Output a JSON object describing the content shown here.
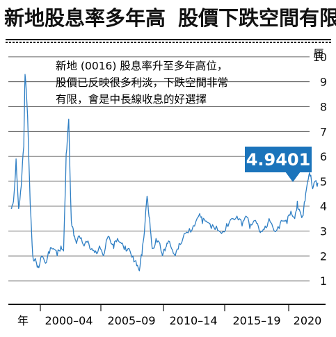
{
  "title_left": "新地股息率多年高",
  "title_right": "股價下跌空間有限",
  "annotation": [
    "新地 (0016) 股息率升至多年高位，",
    "股價已反映很多利淡，下跌空間非常",
    "有限，會是中長線收息的好選擇"
  ],
  "callout_value": "4.9401",
  "colors": {
    "line": "#2f7fc4",
    "callout": "#1b74bb",
    "grid": "#333333",
    "text": "#111111"
  },
  "chart_data": {
    "type": "line",
    "y_unit": "厘",
    "y_ticks": [
      1,
      2,
      3,
      4,
      5,
      6,
      7,
      8,
      9,
      10
    ],
    "ylim": [
      0.5,
      10.5
    ],
    "x_start_label": "年",
    "x_categories": [
      "2000–04",
      "2005–09",
      "2010–14",
      "2015–19",
      "2020"
    ],
    "xlim": [
      1996.8,
      2021.5
    ],
    "last_value": 4.9401,
    "series": [
      {
        "x": [
          1997.0,
          1997.2,
          1997.4,
          1997.6,
          1997.8,
          1998.0,
          1998.1,
          1998.3,
          1998.5,
          1998.7,
          1998.9,
          1999.1,
          1999.4,
          1999.7,
          2000.0,
          2000.3,
          2000.6,
          2000.9,
          2001.1,
          2001.3,
          2001.5,
          2001.7,
          2001.9,
          2002.1,
          2002.4,
          2002.7,
          2003.0,
          2003.3,
          2003.6,
          2003.9,
          2004.2,
          2004.5,
          2004.8,
          2005.0,
          2005.3,
          2005.6,
          2005.9,
          2006.2,
          2006.5,
          2006.8,
          2007.0,
          2007.2,
          2007.4,
          2007.6,
          2007.8,
          2008.0,
          2008.3,
          2008.6,
          2008.8,
          2009.0,
          2009.2,
          2009.5,
          2009.8,
          2010.1,
          2010.5,
          2010.9,
          2011.3,
          2011.7,
          2011.9,
          2012.2,
          2012.6,
          2013.0,
          2013.4,
          2013.8,
          2014.2,
          2014.6,
          2015.0,
          2015.3,
          2015.6,
          2015.9,
          2016.2,
          2016.5,
          2016.8,
          2017.1,
          2017.5,
          2017.9,
          2018.2,
          2018.5,
          2018.8,
          2019.1,
          2019.3,
          2019.5,
          2019.7,
          2019.9,
          2020.1,
          2020.3,
          2020.5,
          2020.7,
          2020.9
        ],
        "y": [
          3.9,
          4.2,
          5.9,
          3.9,
          4.8,
          6.4,
          9.3,
          7.6,
          4.1,
          2.0,
          1.9,
          1.6,
          2.0,
          1.7,
          2.1,
          2.3,
          2.0,
          2.4,
          2.2,
          6.1,
          7.5,
          3.4,
          2.8,
          2.5,
          2.7,
          2.4,
          2.6,
          2.3,
          2.2,
          2.4,
          2.0,
          2.7,
          2.5,
          2.3,
          2.7,
          2.5,
          2.4,
          2.3,
          2.0,
          1.6,
          1.4,
          2.0,
          3.0,
          4.4,
          3.5,
          2.3,
          2.7,
          2.5,
          2.0,
          2.2,
          2.5,
          2.3,
          2.0,
          2.5,
          2.9,
          3.1,
          3.2,
          3.7,
          3.3,
          3.4,
          3.1,
          3.2,
          2.9,
          3.3,
          3.5,
          3.6,
          3.2,
          3.6,
          3.1,
          3.4,
          3.3,
          3.0,
          3.2,
          3.5,
          3.0,
          3.1,
          3.4,
          3.3,
          3.8,
          3.5,
          4.2,
          3.8,
          3.6,
          4.2,
          5.0,
          5.2,
          4.7,
          5.0,
          4.94
        ]
      }
    ]
  }
}
